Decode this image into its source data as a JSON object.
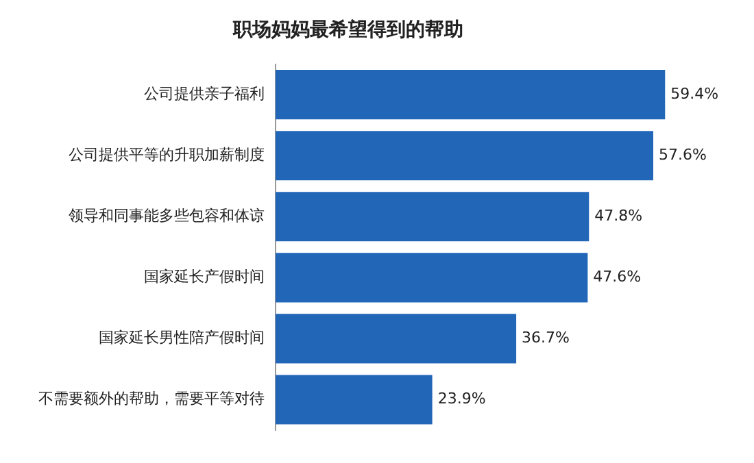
{
  "chart_data": {
    "type": "bar",
    "orientation": "horizontal",
    "title": "职场妈妈最希望得到的帮助",
    "categories": [
      "公司提供亲子福利",
      "公司提供平等的升职加薪制度",
      "领导和同事能多些包容和体谅",
      "国家延长产假时间",
      "国家延长男性陪产假时间",
      "不需要额外的帮助，需要平等对待"
    ],
    "values": [
      59.4,
      57.6,
      47.8,
      47.6,
      36.7,
      23.9
    ],
    "value_labels": [
      "59.4%",
      "57.6%",
      "47.8%",
      "47.6%",
      "36.7%",
      "23.9%"
    ],
    "color": "#2266b8"
  }
}
